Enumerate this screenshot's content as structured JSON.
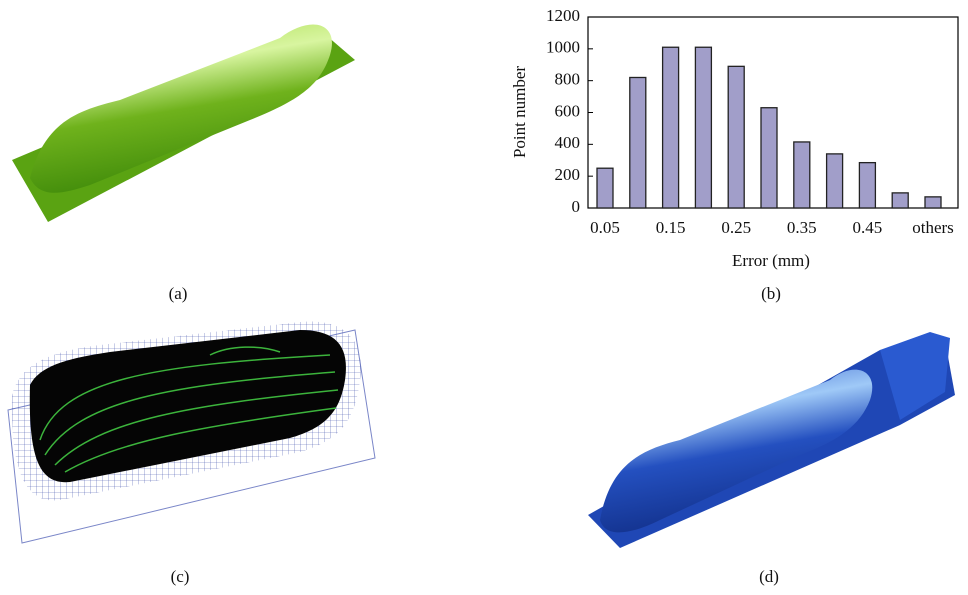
{
  "panels": {
    "a": "(a)",
    "c": "(c)",
    "d": "(d)"
  },
  "chart_data": {
    "type": "bar",
    "caption": "(b)",
    "x_label": "Error (mm)",
    "y_label": "Point number",
    "categories": [
      "0.05",
      null,
      "0.15",
      null,
      "0.25",
      null,
      "0.35",
      null,
      "0.45",
      null,
      "others"
    ],
    "values": [
      250,
      820,
      1010,
      1010,
      890,
      630,
      415,
      340,
      285,
      95,
      70
    ],
    "color": "#a19ec9",
    "ylim": [
      0,
      1200
    ],
    "yticks": [
      0,
      200,
      400,
      600,
      800,
      1000,
      1200
    ],
    "grid": false
  }
}
